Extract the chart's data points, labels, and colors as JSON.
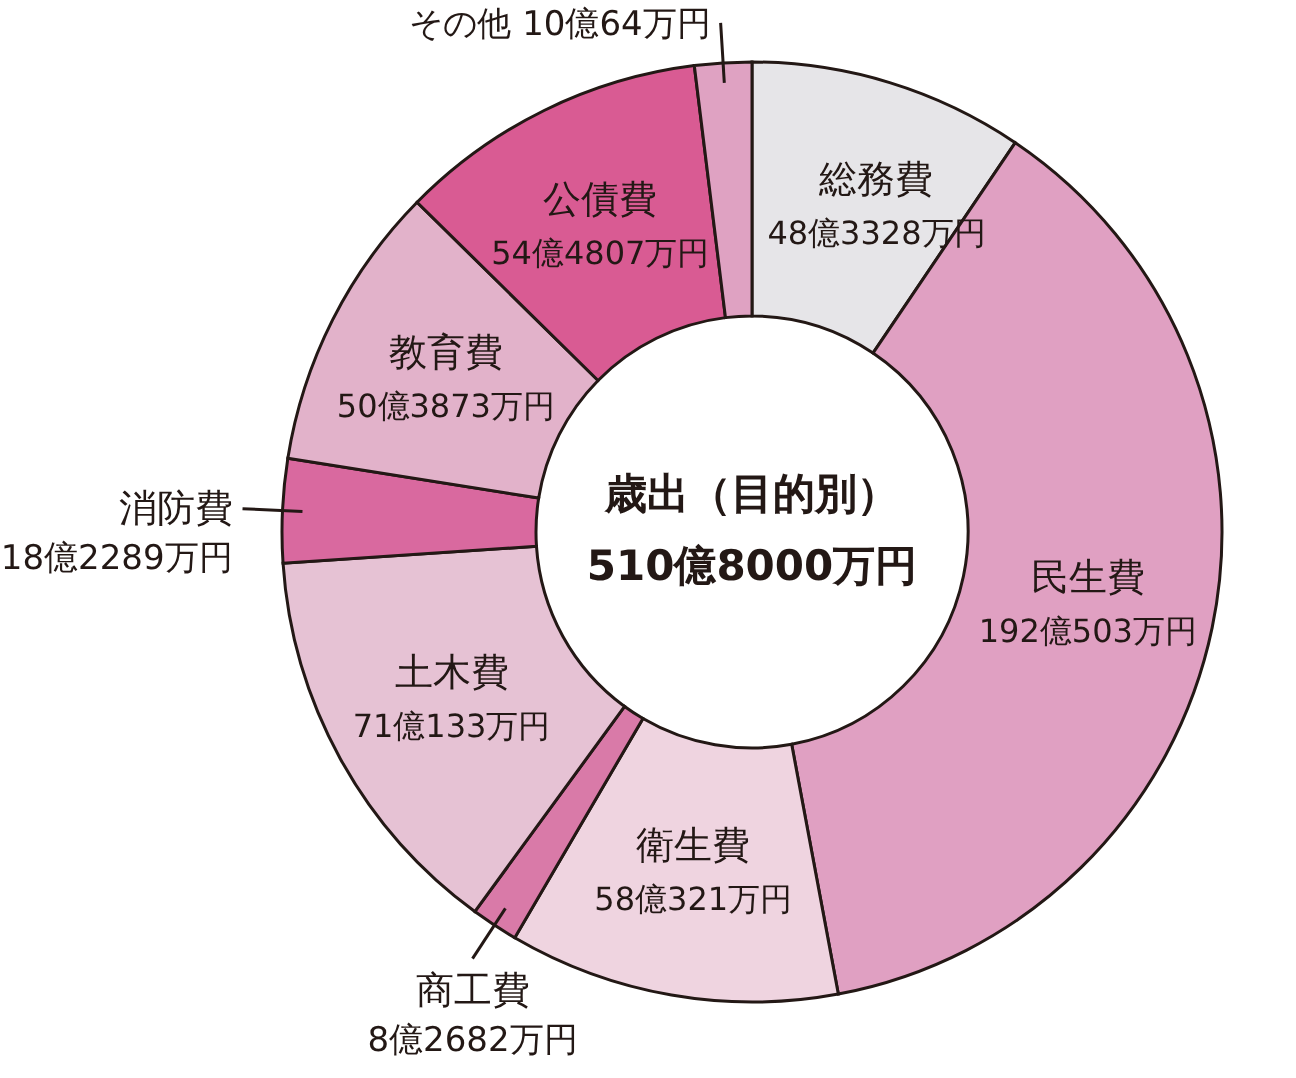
{
  "chart_data": {
    "type": "donut",
    "title": "歳出（目的別）",
    "subtitle": "510億8000万円",
    "categories": [
      "総務費",
      "民生費",
      "衛生費",
      "商工費",
      "土木費",
      "消防費",
      "教育費",
      "公債費",
      "その他"
    ],
    "values": [
      48.3328,
      192.0503,
      58.0321,
      8.2682,
      71.0133,
      18.2289,
      50.3873,
      54.4807,
      10.0064
    ],
    "value_labels": [
      "48億3328万円",
      "192億503万円",
      "58億321万円",
      "8億2682万円",
      "71億133万円",
      "18億2289万円",
      "50億3873万円",
      "54億4807万円",
      "10億64万円"
    ],
    "colors": [
      "#e6e5e8",
      "#e0a0c2",
      "#efd4e0",
      "#d97aa8",
      "#e6c2d4",
      "#d9699f",
      "#e2b2ca",
      "#d95b93",
      "#dfa2c2"
    ]
  }
}
